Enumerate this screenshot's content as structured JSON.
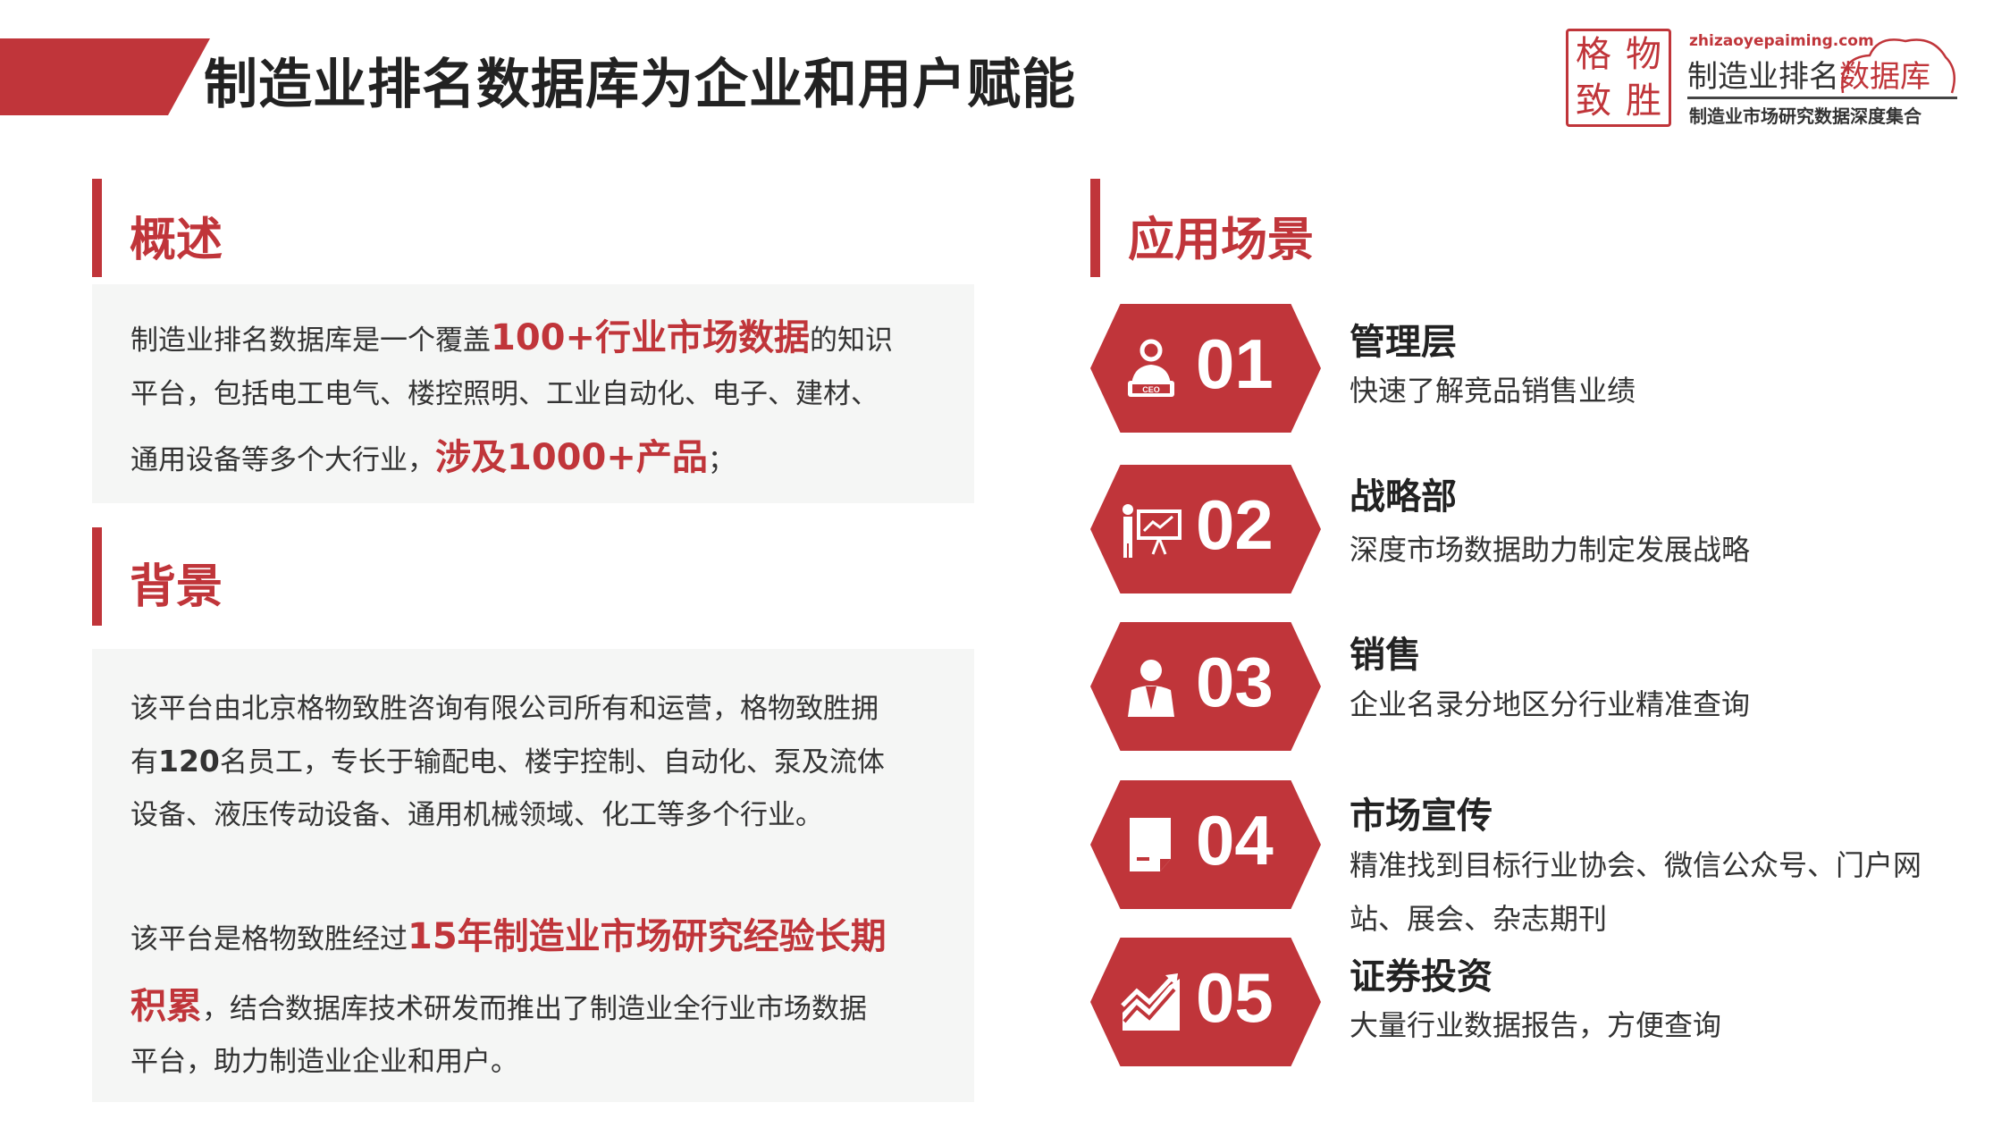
{
  "header": {
    "title": "制造业排名数据库为企业和用户赋能"
  },
  "logo": {
    "seal": [
      "格",
      "物",
      "致",
      "胜"
    ],
    "url": "zhizaoyepaiming.com",
    "name_dark": "制造业排名",
    "name_red": "数据库",
    "tagline": "制造业市场研究数据深度集合"
  },
  "overview": {
    "heading": "概述",
    "p1_a": "制造业排名数据库是一个覆盖",
    "p1_hl": "100+行业市场数据",
    "p1_b": "的知识",
    "p2": "平台，包括电工电气、楼控照明、工业自动化、电子、建材、",
    "p3_a": "通用设备等多个大行业，",
    "p3_hl": "涉及1000+产品",
    "p3_b": "；"
  },
  "background": {
    "heading": "背景",
    "l1": "该平台由北京格物致胜咨询有限公司所有和运营，格物致胜拥",
    "l2_a": "有",
    "l2_b": "120",
    "l2_c": "名员工，专长于输配电、楼宇控制、自动化、泵及流体",
    "l3": "设备、液压传动设备、通用机械领域、化工等多个行业。",
    "l4_a": "该平台是格物致胜经过",
    "l4_hl": "15年制造业市场研究经验长期",
    "l5_hl": "积累",
    "l5_b": "，结合数据库技术研发而推出了制造业全行业市场数据",
    "l6": "平台，助力制造业企业和用户。"
  },
  "scenarios": {
    "heading": "应用场景",
    "items": [
      {
        "num": "01",
        "icon": "ceo-icon",
        "title": "管理层",
        "desc": [
          "快速了解竞品销售业绩"
        ]
      },
      {
        "num": "02",
        "icon": "presentation-icon",
        "title": "战略部",
        "desc": [
          "深度市场数据助力制定发展战略"
        ]
      },
      {
        "num": "03",
        "icon": "salesperson-icon",
        "title": "销售",
        "desc": [
          "企业名录分地区分行业精准查询"
        ]
      },
      {
        "num": "04",
        "icon": "document-icon",
        "title": "市场宣传",
        "desc": [
          "精准找到目标行业协会、微信公众号、门户网",
          "站、展会、杂志期刊"
        ]
      },
      {
        "num": "05",
        "icon": "trend-chart-icon",
        "title": "证券投资",
        "desc": [
          "大量行业数据报告，方便查询"
        ]
      }
    ]
  },
  "colors": {
    "accent": "#c0353a",
    "box": "#f5f6f5"
  }
}
